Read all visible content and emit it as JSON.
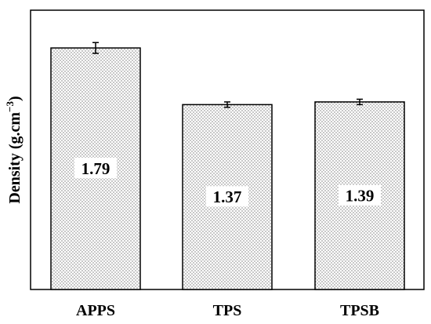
{
  "chart_data": {
    "type": "bar",
    "title": "",
    "xlabel": "",
    "ylabel": "Density",
    "ylabel_unit_base": "(g.cm",
    "ylabel_unit_exp": "−3",
    "ylabel_unit_close": ")",
    "ylim": [
      0,
      2
    ],
    "grid": false,
    "legend": "none",
    "categories": [
      "APPS",
      "TPS",
      "TPSB"
    ],
    "values": [
      1.79,
      1.37,
      1.39
    ],
    "value_labels": [
      "1.79",
      "1.37",
      "1.39"
    ],
    "errors": [
      0.04,
      0.02,
      0.02
    ],
    "colors": {
      "bar_fill": "#ffffff",
      "bar_dots": "#555555",
      "stroke": "#000000"
    }
  }
}
